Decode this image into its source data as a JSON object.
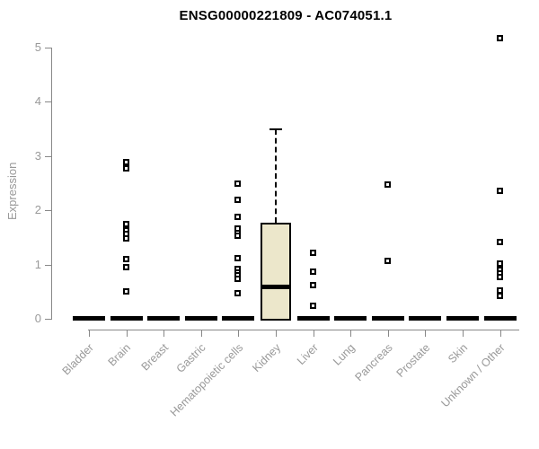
{
  "header": {
    "title": "ENSG00000221809 - AC074051.1"
  },
  "chart_data": {
    "type": "boxplot",
    "title": "ENSG00000221809 - AC074051.1",
    "xlabel": "",
    "ylabel": "Expression",
    "ylim": [
      0,
      5
    ],
    "yticks": [
      0,
      1,
      2,
      3,
      4,
      5
    ],
    "grid": false,
    "legend": "none",
    "categories": [
      "Bladder",
      "Brain",
      "Breast",
      "Gastric",
      "Hematopoietic cells",
      "Kidney",
      "Liver",
      "Lung",
      "Pancreas",
      "Prostate",
      "Skin",
      "Unknown / Other"
    ],
    "series": [
      {
        "category": "Bladder",
        "zero_bar": true,
        "points": []
      },
      {
        "category": "Brain",
        "zero_bar": true,
        "points": [
          2.88,
          2.77,
          1.74,
          1.62,
          1.55,
          1.47,
          1.1,
          0.95,
          0.5
        ]
      },
      {
        "category": "Breast",
        "zero_bar": true,
        "points": []
      },
      {
        "category": "Gastric",
        "zero_bar": true,
        "points": []
      },
      {
        "category": "Hematopoietic cells",
        "zero_bar": true,
        "points": [
          2.48,
          2.18,
          1.87,
          1.66,
          1.58,
          1.52,
          1.11,
          0.91,
          0.85,
          0.79,
          0.73,
          0.46
        ]
      },
      {
        "category": "Kidney",
        "zero_bar": false,
        "box": {
          "q1": 0,
          "median": 0.6,
          "q3": 1.77,
          "whisker_high": 3.5
        },
        "points": []
      },
      {
        "category": "Liver",
        "zero_bar": true,
        "points": [
          1.21,
          0.86,
          0.61,
          0.23
        ]
      },
      {
        "category": "Lung",
        "zero_bar": true,
        "points": []
      },
      {
        "category": "Pancreas",
        "zero_bar": true,
        "points": [
          2.47,
          1.06
        ]
      },
      {
        "category": "Prostate",
        "zero_bar": true,
        "points": []
      },
      {
        "category": "Skin",
        "zero_bar": true,
        "points": []
      },
      {
        "category": "Unknown / Other",
        "zero_bar": true,
        "points": [
          5.17,
          2.35,
          1.41,
          1.01,
          0.9,
          0.83,
          0.76,
          0.52,
          0.42
        ]
      }
    ],
    "colors": {
      "box_fill": "#ece7cb",
      "box_border": "#000000",
      "median": "#000000",
      "marker_border": "#000000",
      "marker_fill": "#ffffff",
      "axis_line": "#888888",
      "tick_text": "#999999",
      "title_text": "#000000",
      "background": "#ffffff"
    }
  }
}
